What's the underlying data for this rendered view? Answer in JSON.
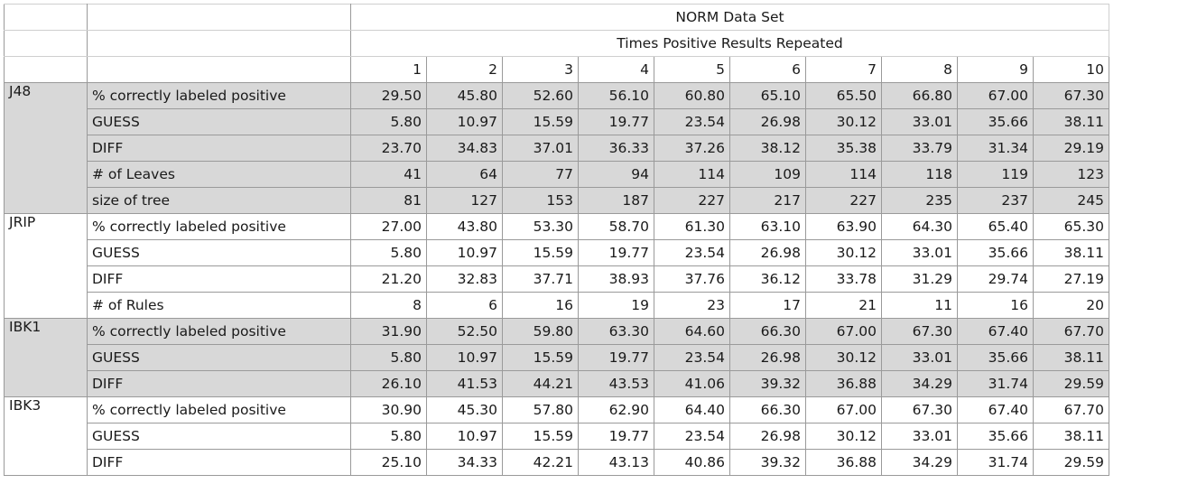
{
  "sheet": {
    "title": "NORM Data Set",
    "subtitle": "Times Positive Results Repeated",
    "columns": [
      "1",
      "2",
      "3",
      "4",
      "5",
      "6",
      "7",
      "8",
      "9",
      "10"
    ],
    "groups": [
      {
        "name": "J48",
        "shade": true,
        "rows": [
          {
            "label": "% correctly labeled positive",
            "values": [
              "29.50",
              "45.80",
              "52.60",
              "56.10",
              "60.80",
              "65.10",
              "65.50",
              "66.80",
              "67.00",
              "67.30"
            ]
          },
          {
            "label": "GUESS",
            "values": [
              "5.80",
              "10.97",
              "15.59",
              "19.77",
              "23.54",
              "26.98",
              "30.12",
              "33.01",
              "35.66",
              "38.11"
            ]
          },
          {
            "label": "DIFF",
            "values": [
              "23.70",
              "34.83",
              "37.01",
              "36.33",
              "37.26",
              "38.12",
              "35.38",
              "33.79",
              "31.34",
              "29.19"
            ]
          },
          {
            "label": "# of Leaves",
            "values": [
              "41",
              "64",
              "77",
              "94",
              "114",
              "109",
              "114",
              "118",
              "119",
              "123"
            ]
          },
          {
            "label": "size of tree",
            "values": [
              "81",
              "127",
              "153",
              "187",
              "227",
              "217",
              "227",
              "235",
              "237",
              "245"
            ]
          }
        ]
      },
      {
        "name": "JRIP",
        "shade": false,
        "rows": [
          {
            "label": "% correctly labeled positive",
            "values": [
              "27.00",
              "43.80",
              "53.30",
              "58.70",
              "61.30",
              "63.10",
              "63.90",
              "64.30",
              "65.40",
              "65.30"
            ]
          },
          {
            "label": "GUESS",
            "values": [
              "5.80",
              "10.97",
              "15.59",
              "19.77",
              "23.54",
              "26.98",
              "30.12",
              "33.01",
              "35.66",
              "38.11"
            ]
          },
          {
            "label": "DIFF",
            "values": [
              "21.20",
              "32.83",
              "37.71",
              "38.93",
              "37.76",
              "36.12",
              "33.78",
              "31.29",
              "29.74",
              "27.19"
            ]
          },
          {
            "label": "# of Rules",
            "values": [
              "8",
              "6",
              "16",
              "19",
              "23",
              "17",
              "21",
              "11",
              "16",
              "20"
            ]
          }
        ]
      },
      {
        "name": "IBK1",
        "shade": true,
        "rows": [
          {
            "label": "% correctly labeled positive",
            "values": [
              "31.90",
              "52.50",
              "59.80",
              "63.30",
              "64.60",
              "66.30",
              "67.00",
              "67.30",
              "67.40",
              "67.70"
            ]
          },
          {
            "label": "GUESS",
            "values": [
              "5.80",
              "10.97",
              "15.59",
              "19.77",
              "23.54",
              "26.98",
              "30.12",
              "33.01",
              "35.66",
              "38.11"
            ]
          },
          {
            "label": "DIFF",
            "values": [
              "26.10",
              "41.53",
              "44.21",
              "43.53",
              "41.06",
              "39.32",
              "36.88",
              "34.29",
              "31.74",
              "29.59"
            ]
          }
        ]
      },
      {
        "name": "IBK3",
        "shade": false,
        "rows": [
          {
            "label": "% correctly labeled positive",
            "values": [
              "30.90",
              "45.30",
              "57.80",
              "62.90",
              "64.40",
              "66.30",
              "67.00",
              "67.30",
              "67.40",
              "67.70"
            ]
          },
          {
            "label": "GUESS",
            "values": [
              "5.80",
              "10.97",
              "15.59",
              "19.77",
              "23.54",
              "26.98",
              "30.12",
              "33.01",
              "35.66",
              "38.11"
            ]
          },
          {
            "label": "DIFF",
            "values": [
              "25.10",
              "34.33",
              "42.21",
              "43.13",
              "40.86",
              "39.32",
              "36.88",
              "34.29",
              "31.74",
              "29.59"
            ]
          }
        ]
      }
    ]
  }
}
